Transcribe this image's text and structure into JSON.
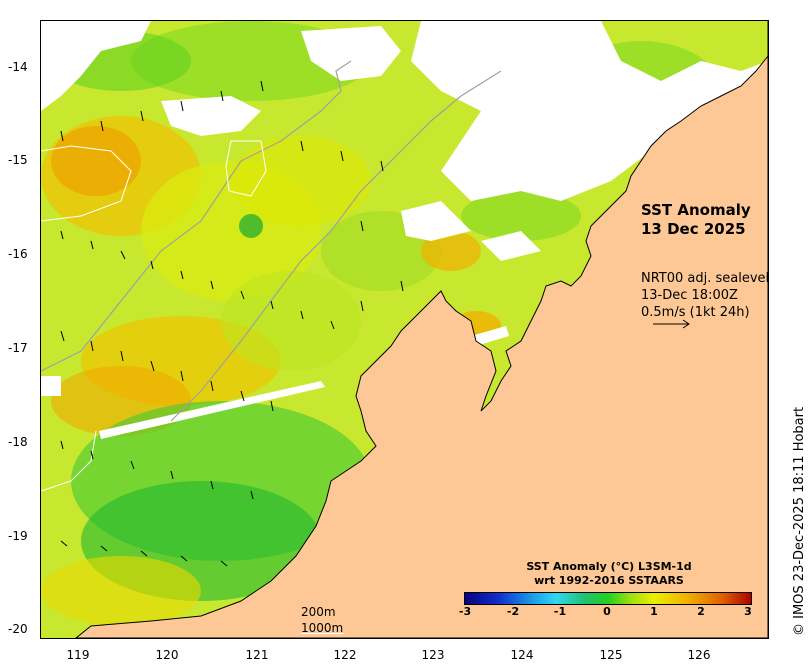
{
  "map": {
    "title_line1": "SST Anomaly",
    "title_line2": "13 Dec 2025",
    "vector_info": {
      "line1": "NRT00 adj. sealevel",
      "line2": "13-Dec 18:00Z",
      "line3": "0.5m/s (1kt 24h)"
    },
    "scale_labels": [
      "200m",
      "1000m"
    ],
    "y_ticks": [
      "-14",
      "-15",
      "-16",
      "-17",
      "-18",
      "-19",
      "-20"
    ],
    "x_ticks": [
      "119",
      "120",
      "121",
      "122",
      "123",
      "124",
      "125",
      "126"
    ],
    "colorbar": {
      "title_line1": "SST Anomaly (°C) L3SM-1d",
      "title_line2": "wrt 1992-2016 SSTAARS",
      "ticks": [
        "-3",
        "-2",
        "-1",
        "0",
        "1",
        "2",
        "3"
      ],
      "range": [
        -3,
        3
      ],
      "colors": [
        "#0b0080",
        "#1030d0",
        "#1ea0e8",
        "#30d8f0",
        "#22c070",
        "#22d020",
        "#9ee010",
        "#e8f000",
        "#f0b000",
        "#e06000",
        "#b00000"
      ]
    },
    "credit": "© IMOS 23-Dec-2025 18:11 Hobart",
    "land_color": "#fdc896",
    "lon_range": [
      118.6,
      126.8
    ],
    "lat_range": [
      -20.05,
      -13.5
    ]
  }
}
